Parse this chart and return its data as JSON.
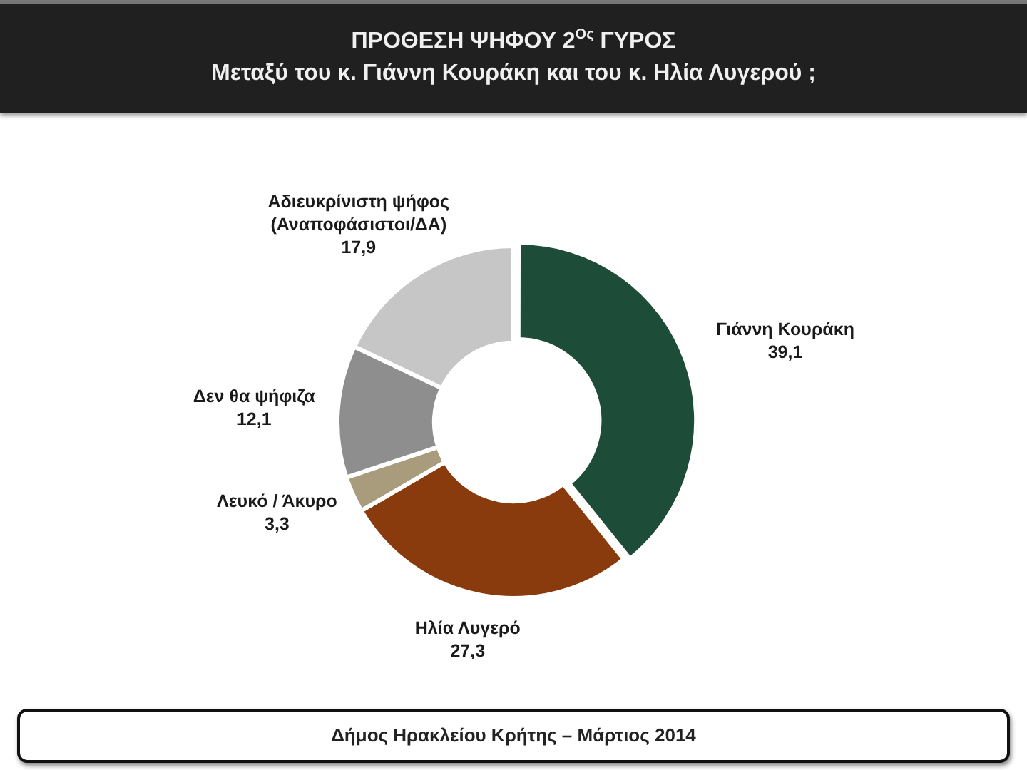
{
  "chart_data": {
    "type": "donut",
    "title": "ΠΡΟΘΕΣΗ ΨΗΦΟΥ 2$^{Ος}$ ΓΥΡΟΣ",
    "subtitle": "Μεταξύ του κ. Γιάννη Κουράκη και του κ. Ηλία Λυγερού ;",
    "categories": [
      "Γιάννη Κουράκη",
      "Ηλία Λυγερό",
      "Λευκό / Άκυρο",
      "Δεν θα ψήφιζα",
      "Αδιευκρίνιστη ψήφος (Αναποφάσιστοι/ΔΑ)"
    ],
    "values": [
      39.1,
      27.3,
      3.3,
      12.1,
      17.9
    ],
    "colors": [
      "#1d4d38",
      "#8a3b0e",
      "#a89c7c",
      "#8e8e8e",
      "#c6c6c6"
    ],
    "value_labels": [
      "39,1",
      "27,3",
      "3,3",
      "12,1",
      "17,9"
    ],
    "annotations": [
      "Δήμος Ηρακλείου Κρήτης – Μάρτιος 2014"
    ]
  }
}
